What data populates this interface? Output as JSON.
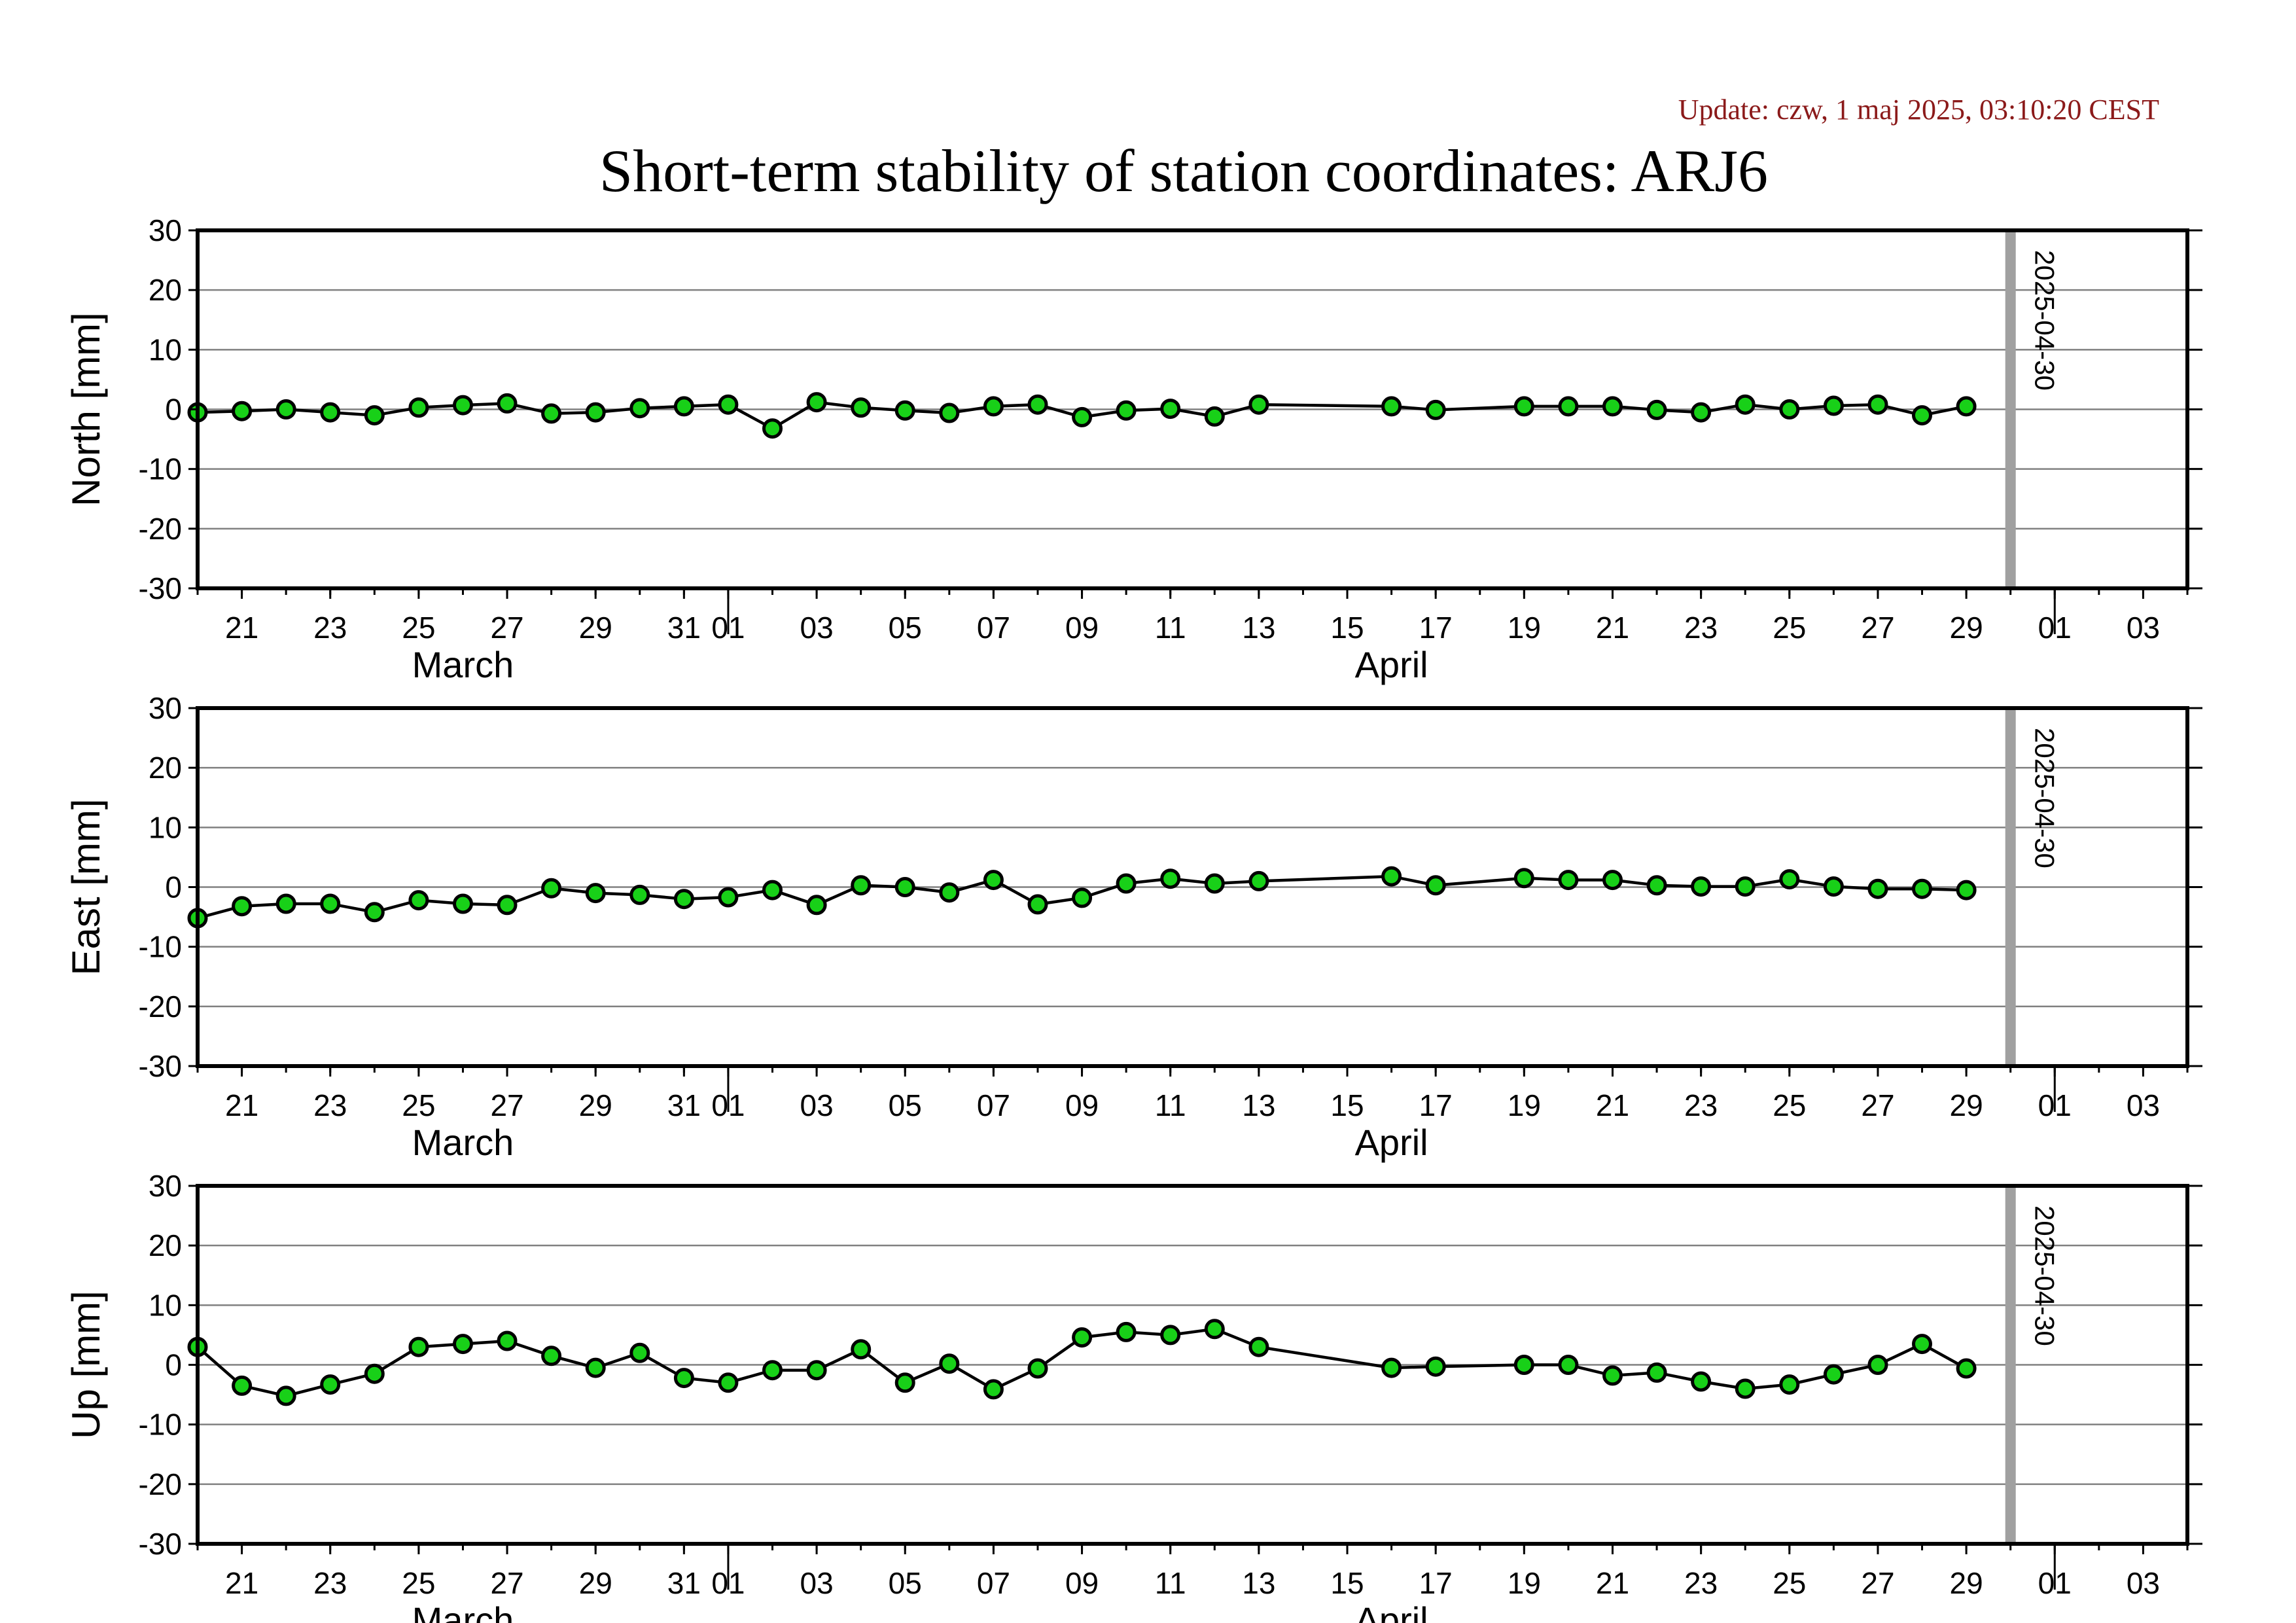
{
  "page": {
    "update_text": "Update: czw, 1 maj 2025, 03:10:20 CEST",
    "title": "Short-term stability of station coordinates: ARJ6"
  },
  "colors": {
    "update_text": "#8b1a1a",
    "marker_fill": "#18d018",
    "marker_stroke": "#000000",
    "series_line": "#000000",
    "gridline": "#808080",
    "zero_line": "#808080",
    "marker_line": "#a0a0a0",
    "frame": "#000000"
  },
  "chart_data": [
    {
      "type": "line",
      "ylabel": "North [mm]",
      "ylim": [
        -30,
        30
      ],
      "yticks": [
        -30,
        -20,
        -10,
        0,
        10,
        20,
        30
      ],
      "xlim": [
        "2025-03-20",
        "2025-05-04"
      ],
      "x_tick_labels": [
        "21",
        "23",
        "25",
        "27",
        "29",
        "31",
        "01",
        "03",
        "05",
        "07",
        "09",
        "11",
        "13",
        "15",
        "17",
        "19",
        "21",
        "23",
        "25",
        "27",
        "29",
        "01",
        "03"
      ],
      "month_labels": [
        "March",
        "April"
      ],
      "grid": true,
      "marker_line": {
        "date": "2025-04-30",
        "label": "2025-04-30"
      },
      "series": [
        {
          "x": [
            "2025-03-20",
            "2025-03-21",
            "2025-03-22",
            "2025-03-23",
            "2025-03-24",
            "2025-03-25",
            "2025-03-26",
            "2025-03-27",
            "2025-03-28",
            "2025-03-29",
            "2025-03-30",
            "2025-03-31",
            "2025-04-01",
            "2025-04-02",
            "2025-04-03",
            "2025-04-04",
            "2025-04-05",
            "2025-04-06",
            "2025-04-07",
            "2025-04-08",
            "2025-04-09",
            "2025-04-10",
            "2025-04-11",
            "2025-04-12",
            "2025-04-13",
            "2025-04-16",
            "2025-04-17",
            "2025-04-19",
            "2025-04-20",
            "2025-04-21",
            "2025-04-22",
            "2025-04-23",
            "2025-04-24",
            "2025-04-25",
            "2025-04-26",
            "2025-04-27",
            "2025-04-28",
            "2025-04-29"
          ],
          "y": [
            -0.5,
            -0.3,
            0.0,
            -0.5,
            -1.0,
            0.3,
            0.7,
            1.0,
            -0.7,
            -0.5,
            0.2,
            0.5,
            0.8,
            -3.2,
            1.2,
            0.3,
            -0.2,
            -0.6,
            0.5,
            0.8,
            -1.3,
            -0.2,
            0.1,
            -1.2,
            0.8,
            0.5,
            -0.1,
            0.5,
            0.5,
            0.5,
            -0.1,
            -0.5,
            0.8,
            0.0,
            0.6,
            0.8,
            -1.0,
            0.5
          ]
        }
      ]
    },
    {
      "type": "line",
      "ylabel": "East [mm]",
      "ylim": [
        -30,
        30
      ],
      "yticks": [
        -30,
        -20,
        -10,
        0,
        10,
        20,
        30
      ],
      "xlim": [
        "2025-03-20",
        "2025-05-04"
      ],
      "x_tick_labels": [
        "21",
        "23",
        "25",
        "27",
        "29",
        "31",
        "01",
        "03",
        "05",
        "07",
        "09",
        "11",
        "13",
        "15",
        "17",
        "19",
        "21",
        "23",
        "25",
        "27",
        "29",
        "01",
        "03"
      ],
      "month_labels": [
        "March",
        "April"
      ],
      "grid": true,
      "marker_line": {
        "date": "2025-04-30",
        "label": "2025-04-30"
      },
      "series": [
        {
          "x": [
            "2025-03-20",
            "2025-03-21",
            "2025-03-22",
            "2025-03-23",
            "2025-03-24",
            "2025-03-25",
            "2025-03-26",
            "2025-03-27",
            "2025-03-28",
            "2025-03-29",
            "2025-03-30",
            "2025-03-31",
            "2025-04-01",
            "2025-04-02",
            "2025-04-03",
            "2025-04-04",
            "2025-04-05",
            "2025-04-06",
            "2025-04-07",
            "2025-04-08",
            "2025-04-09",
            "2025-04-10",
            "2025-04-11",
            "2025-04-12",
            "2025-04-13",
            "2025-04-16",
            "2025-04-17",
            "2025-04-19",
            "2025-04-20",
            "2025-04-21",
            "2025-04-22",
            "2025-04-23",
            "2025-04-24",
            "2025-04-25",
            "2025-04-26",
            "2025-04-27",
            "2025-04-28",
            "2025-04-29"
          ],
          "y": [
            -5.2,
            -3.2,
            -2.8,
            -2.8,
            -4.2,
            -2.2,
            -2.8,
            -3.0,
            -0.2,
            -1.0,
            -1.3,
            -2.0,
            -1.7,
            -0.5,
            -3.0,
            0.3,
            0.0,
            -0.9,
            1.2,
            -2.9,
            -1.8,
            0.6,
            1.4,
            0.6,
            1.0,
            1.8,
            0.3,
            1.5,
            1.2,
            1.2,
            0.3,
            0.1,
            0.1,
            1.3,
            0.1,
            -0.3,
            -0.3,
            -0.5
          ]
        }
      ]
    },
    {
      "type": "line",
      "ylabel": "Up [mm]",
      "ylim": [
        -30,
        30
      ],
      "yticks": [
        -30,
        -20,
        -10,
        0,
        10,
        20,
        30
      ],
      "xlim": [
        "2025-03-20",
        "2025-05-04"
      ],
      "x_tick_labels": [
        "21",
        "23",
        "25",
        "27",
        "29",
        "31",
        "01",
        "03",
        "05",
        "07",
        "09",
        "11",
        "13",
        "15",
        "17",
        "19",
        "21",
        "23",
        "25",
        "27",
        "29",
        "01",
        "03"
      ],
      "month_labels": [
        "March",
        "April"
      ],
      "grid": true,
      "marker_line": {
        "date": "2025-04-30",
        "label": "2025-04-30"
      },
      "series": [
        {
          "x": [
            "2025-03-20",
            "2025-03-21",
            "2025-03-22",
            "2025-03-23",
            "2025-03-24",
            "2025-03-25",
            "2025-03-26",
            "2025-03-27",
            "2025-03-28",
            "2025-03-29",
            "2025-03-30",
            "2025-03-31",
            "2025-04-01",
            "2025-04-02",
            "2025-04-03",
            "2025-04-04",
            "2025-04-05",
            "2025-04-06",
            "2025-04-07",
            "2025-04-08",
            "2025-04-09",
            "2025-04-10",
            "2025-04-11",
            "2025-04-12",
            "2025-04-13",
            "2025-04-16",
            "2025-04-17",
            "2025-04-19",
            "2025-04-20",
            "2025-04-21",
            "2025-04-22",
            "2025-04-23",
            "2025-04-24",
            "2025-04-25",
            "2025-04-26",
            "2025-04-27",
            "2025-04-28",
            "2025-04-29"
          ],
          "y": [
            3.0,
            -3.5,
            -5.2,
            -3.3,
            -1.5,
            3.0,
            3.5,
            4.0,
            1.5,
            -0.5,
            2.0,
            -2.2,
            -3.0,
            -0.9,
            -0.9,
            2.6,
            -3.0,
            0.2,
            -4.1,
            -0.6,
            4.6,
            5.5,
            5.0,
            6.0,
            3.0,
            -0.5,
            -0.3,
            0.0,
            0.0,
            -1.8,
            -1.3,
            -2.8,
            -4.0,
            -3.3,
            -1.6,
            0.0,
            3.5,
            -0.6
          ]
        }
      ]
    }
  ]
}
